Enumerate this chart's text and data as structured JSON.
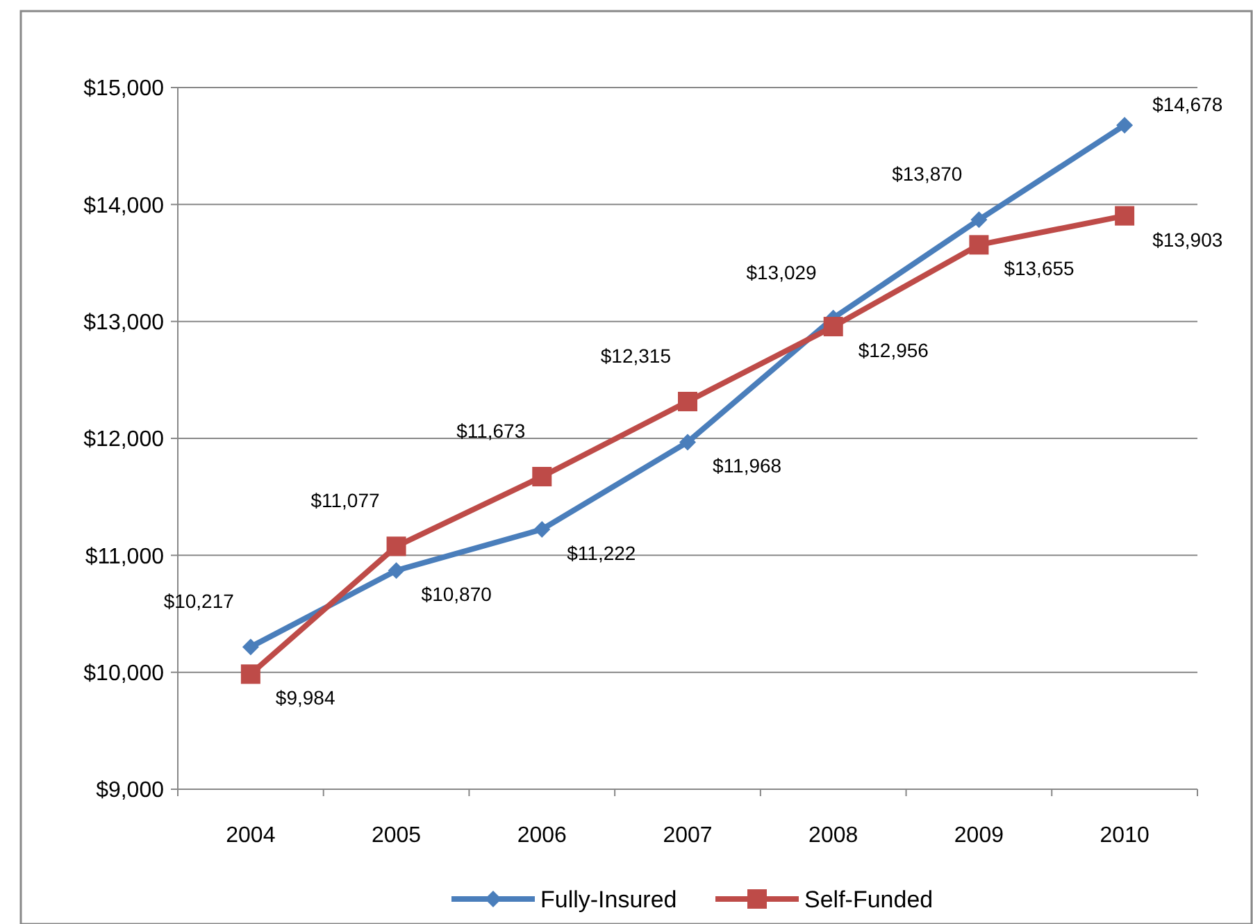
{
  "chart_data": {
    "type": "line",
    "categories": [
      "2004",
      "2005",
      "2006",
      "2007",
      "2008",
      "2009",
      "2010"
    ],
    "series": [
      {
        "name": "Fully-Insured",
        "color": "#4a7ebb",
        "marker": "diamond",
        "values": [
          10217,
          10870,
          11222,
          11968,
          13029,
          13870,
          14678
        ],
        "value_labels": [
          "$10,217",
          "$10,870",
          "$11,222",
          "$11,968",
          "$13,029",
          "$13,870",
          "$14,678"
        ]
      },
      {
        "name": "Self-Funded",
        "color": "#be4b48",
        "marker": "square",
        "values": [
          9984,
          11077,
          11673,
          12315,
          12956,
          13655,
          13903
        ],
        "value_labels": [
          "$9,984",
          "$11,077",
          "$11,673",
          "$12,315",
          "$12,956",
          "$13,655",
          "$13,903"
        ]
      }
    ],
    "ylim": [
      9000,
      15000
    ],
    "yticks": [
      {
        "value": 9000,
        "label": "$9,000"
      },
      {
        "value": 10000,
        "label": "$10,000"
      },
      {
        "value": 11000,
        "label": "$11,000"
      },
      {
        "value": 12000,
        "label": "$12,000"
      },
      {
        "value": 13000,
        "label": "$13,000"
      },
      {
        "value": 14000,
        "label": "$14,000"
      },
      {
        "value": 15000,
        "label": "$15,000"
      }
    ],
    "grid": "y",
    "legend": "bottom"
  }
}
